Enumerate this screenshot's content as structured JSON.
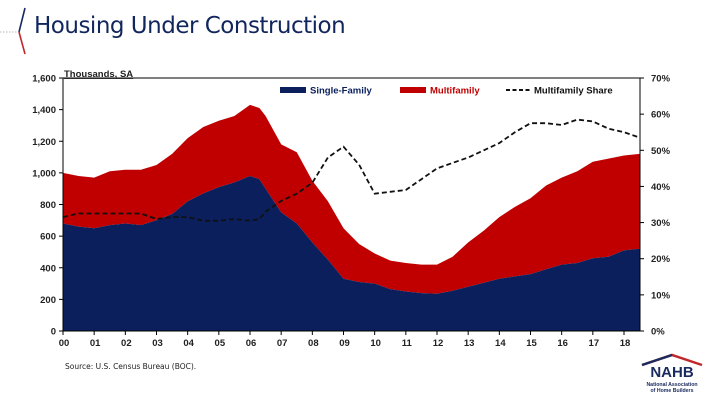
{
  "page": {
    "title": "Housing Under Construction",
    "source": "Source: U.S. Census Bureau (BOC).",
    "logo": {
      "name": "NAHB",
      "subtitle_line1": "National Association",
      "subtitle_line2": "of Home Builders"
    }
  },
  "colors": {
    "single_family": "#0a1f5c",
    "multifamily": "#c00000",
    "share_line": "#111111",
    "title": "#12265e"
  },
  "chart_data": {
    "type": "area",
    "title": "Housing Under Construction",
    "ylabel": "Thousands, SA",
    "y2label": "Multifamily Share",
    "xlabel": "",
    "x_tick_labels": [
      "00",
      "01",
      "02",
      "03",
      "04",
      "05",
      "06",
      "07",
      "08",
      "09",
      "10",
      "11",
      "12",
      "13",
      "14",
      "15",
      "16",
      "17",
      "18"
    ],
    "y_ticks": [
      0,
      200,
      400,
      600,
      800,
      1000,
      1200,
      1400,
      1600
    ],
    "y_tick_labels": [
      "0",
      "200",
      "400",
      "600",
      "800",
      "1,000",
      "1,200",
      "1,400",
      "1,600"
    ],
    "y2_ticks": [
      0,
      10,
      20,
      30,
      40,
      50,
      60,
      70
    ],
    "y2_tick_labels": [
      "0%",
      "10%",
      "20%",
      "30%",
      "40%",
      "50%",
      "60%",
      "70%"
    ],
    "ylim": [
      0,
      1600
    ],
    "y2lim": [
      0,
      70
    ],
    "xlim": [
      0,
      18.5
    ],
    "legend_position": "top-right",
    "x": [
      0,
      0.5,
      1,
      1.5,
      2,
      2.5,
      3,
      3.5,
      4,
      4.5,
      5,
      5.5,
      6,
      6.3,
      6.5,
      7,
      7.5,
      8,
      8.5,
      9,
      9.5,
      10,
      10.5,
      11,
      11.5,
      12,
      12.5,
      13,
      13.5,
      14,
      14.5,
      15,
      15.5,
      16,
      16.5,
      17,
      17.5,
      18,
      18.5
    ],
    "series": [
      {
        "name": "Single-Family",
        "type": "area",
        "axis": "left",
        "values": [
          680,
          660,
          650,
          670,
          680,
          670,
          700,
          740,
          820,
          870,
          910,
          940,
          980,
          960,
          900,
          750,
          680,
          560,
          450,
          330,
          310,
          300,
          265,
          250,
          240,
          235,
          255,
          280,
          305,
          330,
          345,
          360,
          390,
          420,
          430,
          460,
          470,
          510,
          520
        ]
      },
      {
        "name": "Multifamily",
        "type": "stacked-area",
        "axis": "left",
        "values": [
          320,
          320,
          320,
          340,
          340,
          350,
          350,
          380,
          400,
          420,
          420,
          420,
          450,
          450,
          460,
          430,
          450,
          390,
          370,
          320,
          240,
          190,
          180,
          180,
          180,
          185,
          215,
          280,
          330,
          390,
          440,
          480,
          530,
          550,
          580,
          610,
          620,
          600,
          600
        ]
      },
      {
        "name": "Multifamily Share",
        "type": "line",
        "axis": "right",
        "style": "dashed",
        "values": [
          31.5,
          32.5,
          32.5,
          32.5,
          32.5,
          32.5,
          31,
          31.5,
          31.5,
          30.5,
          30.5,
          31,
          30.5,
          31,
          33,
          36,
          38,
          41,
          48,
          51,
          46,
          38,
          38.5,
          39,
          42,
          45,
          46.5,
          48,
          50,
          52,
          55,
          57.5,
          57.5,
          57,
          58.5,
          58,
          56,
          55,
          53.5
        ]
      }
    ],
    "legend": [
      {
        "label": "Single-Family",
        "swatch": "box"
      },
      {
        "label": "Multifamily",
        "swatch": "box"
      },
      {
        "label": "Multifamily Share",
        "swatch": "dashed-line"
      }
    ]
  }
}
